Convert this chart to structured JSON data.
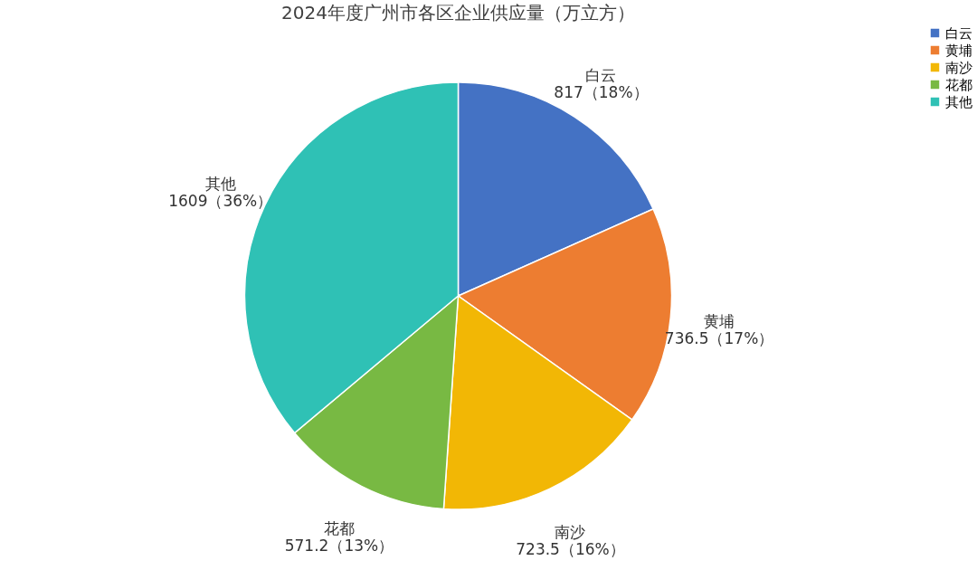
{
  "chart_data": {
    "type": "pie",
    "title": "2024年度广州市各区企业供应量（万立方）",
    "categories": [
      "白云",
      "黄埔",
      "南沙",
      "花都",
      "其他"
    ],
    "values": [
      817,
      736.5,
      723.5,
      571.2,
      1609
    ],
    "value_labels": [
      "817（18%）",
      "736.5（17%）",
      "723.5（16%）",
      "571.2（13%）",
      "1609（36%）"
    ],
    "colors": [
      "#4472c4",
      "#ed7d31",
      "#f2b705",
      "#78b943",
      "#2fc1b5"
    ],
    "legend": "right"
  }
}
